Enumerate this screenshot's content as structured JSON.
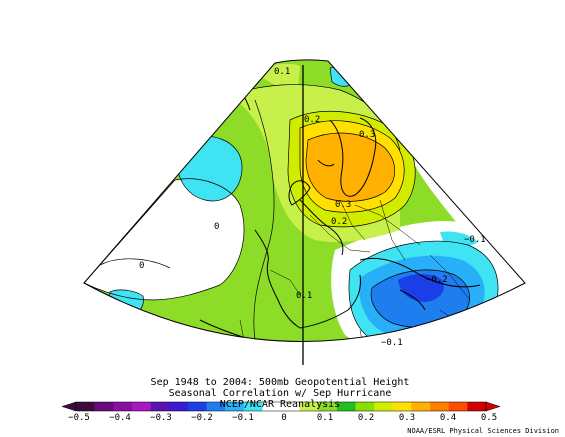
{
  "title": {
    "line1": "Sep 1948 to 2004: 500mb Geopotential Height",
    "line2": "Seasonal Correlation w/ Sep Hurricane",
    "line3": "NCEP/NCAR Reanalysis"
  },
  "credit": "NOAA/ESRL Physical Sciences Division",
  "colorbar": {
    "tick_labels": [
      "−0.5",
      "−0.4",
      "−0.3",
      "−0.2",
      "−0.1",
      "0",
      "0.1",
      "0.2",
      "0.3",
      "0.4",
      "0.5"
    ],
    "colors": [
      "#3c0c3c",
      "#6a0a7a",
      "#8a0ea0",
      "#a817c4",
      "#5b14b3",
      "#3a1bd0",
      "#1a3fe6",
      "#1e7ef0",
      "#27b0f8",
      "#3fe3f2",
      "#ffffff",
      "#ffffff",
      "#c8f04a",
      "#8cdc28",
      "#20c020",
      "#88e000",
      "#d2ec00",
      "#ffe000",
      "#ffb000",
      "#ff8000",
      "#ff4c00",
      "#d20000"
    ]
  },
  "contour_labels": [
    {
      "text": "0.1"
    },
    {
      "text": "0.2"
    },
    {
      "text": "0.3"
    },
    {
      "text": "0.3"
    },
    {
      "text": "0.2"
    },
    {
      "text": "0"
    },
    {
      "text": "0"
    },
    {
      "text": "0.1"
    },
    {
      "text": "−0.1"
    },
    {
      "text": "−0.2"
    },
    {
      "text": "−0.1"
    }
  ],
  "colors": {
    "green": "#8cdc28",
    "yellow_green": "#c8f04a",
    "lime": "#d2ec00",
    "yellow": "#ffe000",
    "orange": "#ffb000",
    "cyan": "#3fe3f2",
    "light_blue": "#27b0f8",
    "blue": "#1e7ef0",
    "deep_blue": "#1a3fe6",
    "white": "#ffffff"
  }
}
